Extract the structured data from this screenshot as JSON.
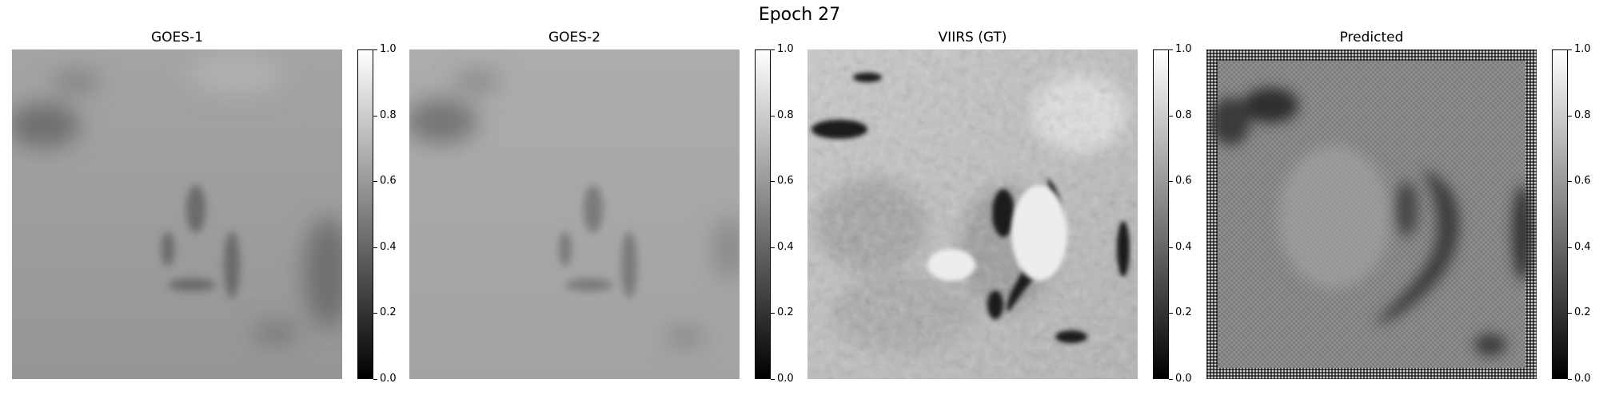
{
  "figure": {
    "title": "Epoch 27"
  },
  "colorbar": {
    "ticks": [
      "0.0",
      "0.2",
      "0.4",
      "0.6",
      "0.8",
      "1.0"
    ],
    "colormap": "gray",
    "range": [
      0.0,
      1.0
    ]
  },
  "panels": [
    {
      "title": "GOES-1",
      "base_color": "#9a9a9a"
    },
    {
      "title": "GOES-2",
      "base_color": "#a6a6a6"
    },
    {
      "title": "VIIRS (GT)",
      "base_color": "#b9b9b9"
    },
    {
      "title": "Predicted",
      "base_color": "#8c8c8c"
    }
  ]
}
